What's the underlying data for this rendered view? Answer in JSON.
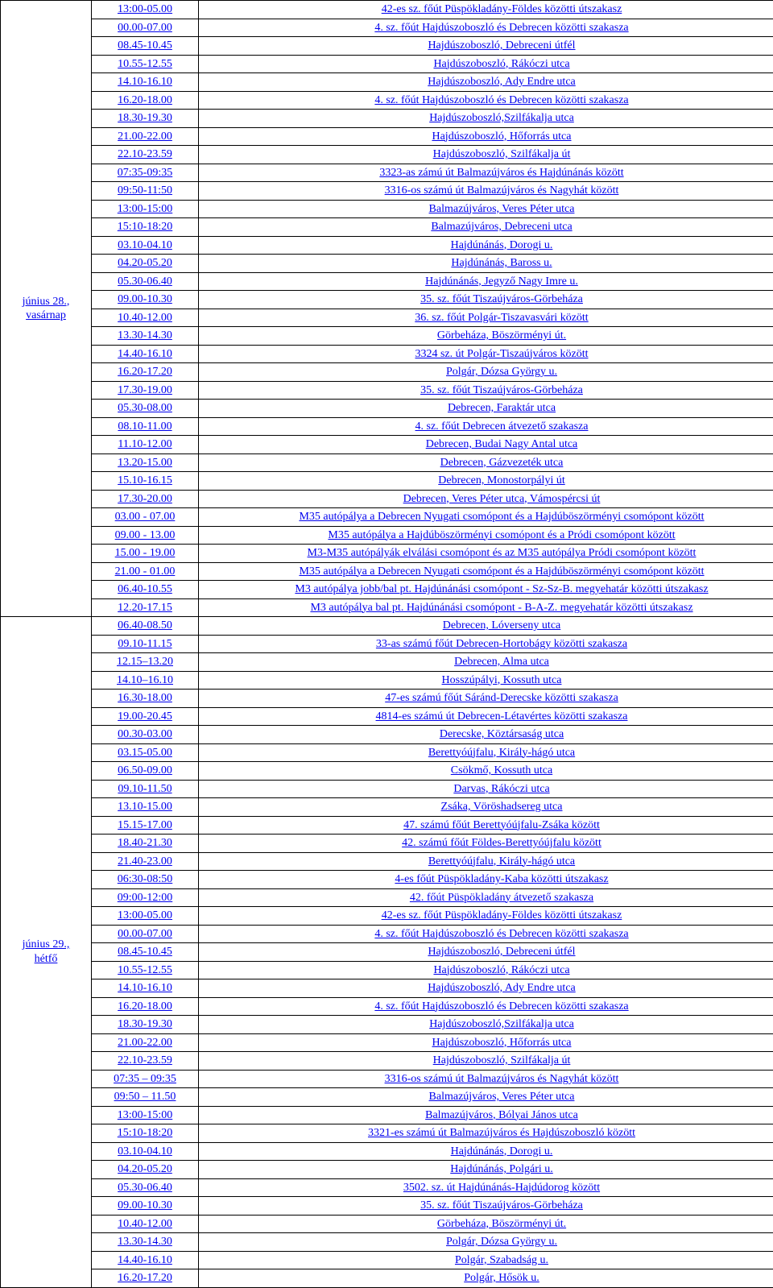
{
  "link_color": "#0000ee",
  "days": [
    {
      "label": "június 28.,\nvasárnap",
      "rows": [
        {
          "time": "13:00-05.00",
          "desc": "42-es sz. főút Püspökladány-Földes közötti útszakasz"
        },
        {
          "time": "00.00-07.00",
          "desc": "4. sz. főút Hajdúszoboszló és Debrecen közötti szakasza"
        },
        {
          "time": "08.45-10.45",
          "desc": "Hajdúszoboszló, Debreceni útfél"
        },
        {
          "time": "10.55-12.55",
          "desc": "Hajdúszoboszló, Rákóczi utca"
        },
        {
          "time": "14.10-16.10",
          "desc": "Hajdúszoboszló, Ady Endre utca"
        },
        {
          "time": "16.20-18.00",
          "desc": "4. sz. főút Hajdúszoboszló és Debrecen közötti szakasza"
        },
        {
          "time": "18.30-19.30",
          "desc": "Hajdúszoboszló,Szilfákalja utca"
        },
        {
          "time": "21.00-22.00",
          "desc": "Hajdúszoboszló, Hőforrás utca"
        },
        {
          "time": "22.10-23.59",
          "desc": "Hajdúszoboszló, Szilfákalja út"
        },
        {
          "time": "07:35-09:35",
          "desc": "3323-as zámú út Balmazújváros és Hajdúnánás között"
        },
        {
          "time": "09:50-11:50",
          "desc": "3316-os számú út Balmazújváros és Nagyhát között"
        },
        {
          "time": "13:00-15:00",
          "desc": "Balmazújváros, Veres Péter utca"
        },
        {
          "time": "15:10-18:20",
          "desc": "Balmazújváros, Debreceni utca"
        },
        {
          "time": "03.10-04.10",
          "desc": "Hajdúnánás, Dorogi u."
        },
        {
          "time": "04.20-05.20",
          "desc": "Hajdúnánás, Baross u."
        },
        {
          "time": "05.30-06.40",
          "desc": "Hajdúnánás, Jegyző Nagy Imre u."
        },
        {
          "time": "09.00-10.30",
          "desc": "35. sz. főút Tiszaújváros-Görbeháza"
        },
        {
          "time": "10.40-12.00",
          "desc": "36. sz. főút Polgár-Tiszavasvári között"
        },
        {
          "time": "13.30-14.30",
          "desc": "Görbeháza, Böszörményi út."
        },
        {
          "time": "14.40-16.10",
          "desc": "3324 sz. út Polgár-Tiszaújváros között"
        },
        {
          "time": "16.20-17.20",
          "desc": "Polgár, Dózsa György u."
        },
        {
          "time": "17.30-19.00",
          "desc": "35. sz. főút Tiszaújváros-Görbeháza"
        },
        {
          "time": "05.30-08.00",
          "desc": "Debrecen, Faraktár utca"
        },
        {
          "time": "08.10-11.00",
          "desc": "4. sz. főút Debrecen átvezető szakasza"
        },
        {
          "time": "11.10-12.00",
          "desc": "Debrecen, Budai Nagy Antal utca"
        },
        {
          "time": "13.20-15.00",
          "desc": "Debrecen, Gázvezeték utca"
        },
        {
          "time": "15.10-16.15",
          "desc": "Debrecen, Monostorpályi út"
        },
        {
          "time": "17.30-20.00",
          "desc": "Debrecen, Veres Péter utca, Vámospércsi út"
        },
        {
          "time": "03.00 - 07.00",
          "desc": "M35 autópálya a Debrecen Nyugati csomópont és a Hajdúböszörményi csomópont között"
        },
        {
          "time": "09.00 - 13.00",
          "desc": "M35 autópálya a Hajdúböszörményi csomópont és a Pródi csomópont között"
        },
        {
          "time": "15.00 - 19.00",
          "desc": "M3-M35 autópályák elválási csomópont és az M35 autópálya Pródi csomópont között"
        },
        {
          "time": "21.00 - 01.00",
          "desc": "M35 autópálya a Debrecen Nyugati csomópont és a Hajdúböszörményi csomópont között"
        },
        {
          "time": "06.40-10.55",
          "desc": "M3 autópálya jobb/bal pt. Hajdúnánási csomópont - Sz-Sz-B. megyehatár közötti útszakasz"
        },
        {
          "time": "12.20-17.15",
          "desc": "M3 autópálya bal pt. Hajdúnánási csomópont - B-A-Z. megyehatár közötti útszakasz"
        }
      ]
    },
    {
      "label": "június 29.,\nhétfő",
      "rows": [
        {
          "time": "06.40-08.50",
          "desc": "Debrecen, Lóverseny utca"
        },
        {
          "time": "09.10-11.15",
          "desc": "33-as számú főút Debrecen-Hortobágy közötti szakasza"
        },
        {
          "time": "12.15–13.20",
          "desc": "Debrecen, Alma utca"
        },
        {
          "time": "14.10–16.10",
          "desc": "Hosszúpályi, Kossuth utca"
        },
        {
          "time": "16.30-18.00",
          "desc": "47-es számú főút Sáránd-Derecske közötti szakasza"
        },
        {
          "time": "19.00-20.45",
          "desc": "4814-es számú út Debrecen-Létavértes közötti szakasza"
        },
        {
          "time": "00.30-03.00",
          "desc": "Derecske, Köztársaság utca"
        },
        {
          "time": "03.15-05.00",
          "desc": "Berettyóújfalu, Király-hágó utca"
        },
        {
          "time": "06.50-09.00",
          "desc": "Csökmő, Kossuth utca"
        },
        {
          "time": "09.10-11.50",
          "desc": "Darvas, Rákóczi utca"
        },
        {
          "time": "13.10-15.00",
          "desc": "Zsáka, Vöröshadsereg utca"
        },
        {
          "time": "15.15-17.00",
          "desc": "47. számú főút Berettyóújfalu-Zsáka között"
        },
        {
          "time": "18.40-21.30",
          "desc": "42. számú főút Földes-Berettyóújfalu között"
        },
        {
          "time": "21.40-23.00",
          "desc": "Berettyóújfalu, Király-hágó utca"
        },
        {
          "time": "06:30-08:50",
          "desc": "4-es főút Püspökladány-Kaba közötti útszakasz"
        },
        {
          "time": "09:00-12:00",
          "desc": "42. főút Püspökladány átvezető szakasza"
        },
        {
          "time": "13:00-05.00",
          "desc": "42-es sz. főút Püspökladány-Földes közötti útszakasz"
        },
        {
          "time": "00.00-07.00",
          "desc": "4. sz. főút Hajdúszoboszló és Debrecen közötti szakasza"
        },
        {
          "time": "08.45-10.45",
          "desc": "Hajdúszoboszló, Debreceni útfél"
        },
        {
          "time": "10.55-12.55",
          "desc": "Hajdúszoboszló, Rákóczi utca"
        },
        {
          "time": "14.10-16.10",
          "desc": "Hajdúszoboszló, Ady Endre utca"
        },
        {
          "time": "16.20-18.00",
          "desc": "4. sz. főút Hajdúszoboszló és Debrecen közötti szakasza"
        },
        {
          "time": "18.30-19.30",
          "desc": "Hajdúszoboszló,Szilfákalja utca"
        },
        {
          "time": "21.00-22.00",
          "desc": "Hajdúszoboszló, Hőforrás utca"
        },
        {
          "time": "22.10-23.59",
          "desc": "Hajdúszoboszló, Szilfákalja út"
        },
        {
          "time": "07:35 – 09:35",
          "desc": "3316-os számú út Balmazújváros és Nagyhát között"
        },
        {
          "time": "09:50 – 11.50",
          "desc": "Balmazújváros, Veres Péter utca"
        },
        {
          "time": "13:00-15:00",
          "desc": "Balmazújváros, Bólyai János utca"
        },
        {
          "time": "15:10-18:20",
          "desc": "3321-es számú út Balmazújváros és Hajdúszoboszló között"
        },
        {
          "time": "03.10-04.10",
          "desc": "Hajdúnánás, Dorogi u."
        },
        {
          "time": "04.20-05.20",
          "desc": "Hajdúnánás, Polgári u."
        },
        {
          "time": "05.30-06.40",
          "desc": "3502. sz. út Hajdúnánás-Hajdúdorog között"
        },
        {
          "time": "09.00-10.30",
          "desc": "35. sz. főút Tiszaújváros-Görbeháza"
        },
        {
          "time": "10.40-12.00",
          "desc": "Görbeháza, Böszörményi út."
        },
        {
          "time": "13.30-14.30",
          "desc": "Polgár, Dózsa György u."
        },
        {
          "time": "14.40-16.10",
          "desc": "Polgár, Szabadság u."
        },
        {
          "time": "16.20-17.20",
          "desc": "Polgár, Hősök u."
        }
      ]
    }
  ]
}
